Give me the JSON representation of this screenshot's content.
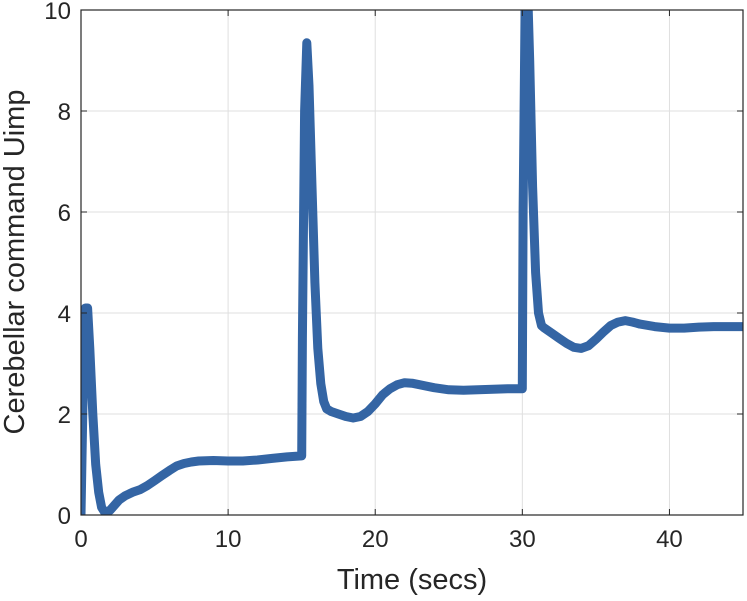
{
  "chart_data": {
    "type": "line",
    "title": "",
    "xlabel": "Time (secs)",
    "ylabel": "Cerebellar command Uimp",
    "xlim": [
      0,
      45
    ],
    "ylim": [
      0,
      10
    ],
    "xticks": [
      0,
      10,
      20,
      30,
      40
    ],
    "yticks": [
      0,
      2,
      4,
      6,
      8,
      10
    ],
    "grid": true,
    "legend": "none",
    "series": [
      {
        "color": "#3465a4",
        "x": [
          0,
          0.15,
          0.3,
          0.45,
          0.6,
          0.8,
          1.0,
          1.2,
          1.4,
          1.6,
          1.8,
          2.0,
          2.3,
          2.6,
          3.0,
          3.5,
          4.0,
          4.5,
          5.0,
          5.5,
          6.0,
          6.5,
          7.0,
          7.5,
          8.0,
          9.0,
          10.0,
          11.0,
          12.0,
          13.0,
          14.0,
          15.0,
          15.05,
          15.2,
          15.35,
          15.5,
          15.7,
          15.9,
          16.1,
          16.3,
          16.5,
          16.7,
          17.0,
          17.5,
          18.0,
          18.5,
          19.0,
          19.5,
          20.0,
          20.5,
          21.0,
          21.5,
          22.0,
          22.5,
          23.0,
          24.0,
          25.0,
          26.0,
          27.0,
          28.0,
          29.0,
          30.0,
          30.05,
          30.2,
          30.35,
          30.5,
          30.7,
          30.9,
          31.1,
          31.3,
          31.5,
          32.0,
          32.5,
          33.0,
          33.5,
          34.0,
          34.5,
          35.0,
          35.5,
          36.0,
          36.5,
          37.0,
          37.5,
          38.0,
          39.0,
          40.0,
          41.0,
          42.0,
          43.0,
          44.0,
          45.0
        ],
        "y": [
          0,
          2.5,
          4.1,
          4.1,
          3.3,
          2.0,
          1.0,
          0.45,
          0.15,
          0.06,
          0.05,
          0.1,
          0.2,
          0.3,
          0.38,
          0.45,
          0.5,
          0.58,
          0.68,
          0.78,
          0.88,
          0.97,
          1.02,
          1.05,
          1.07,
          1.08,
          1.07,
          1.07,
          1.09,
          1.12,
          1.15,
          1.17,
          3.5,
          8.0,
          9.35,
          8.5,
          6.5,
          4.6,
          3.3,
          2.6,
          2.25,
          2.1,
          2.05,
          2.0,
          1.95,
          1.92,
          1.95,
          2.05,
          2.2,
          2.38,
          2.5,
          2.58,
          2.62,
          2.61,
          2.58,
          2.52,
          2.48,
          2.47,
          2.48,
          2.49,
          2.5,
          2.5,
          6.0,
          10.5,
          10.5,
          9.0,
          6.5,
          4.8,
          4.0,
          3.75,
          3.7,
          3.6,
          3.5,
          3.4,
          3.32,
          3.3,
          3.35,
          3.48,
          3.62,
          3.75,
          3.82,
          3.85,
          3.82,
          3.78,
          3.73,
          3.7,
          3.7,
          3.72,
          3.73,
          3.73,
          3.73
        ]
      }
    ]
  }
}
